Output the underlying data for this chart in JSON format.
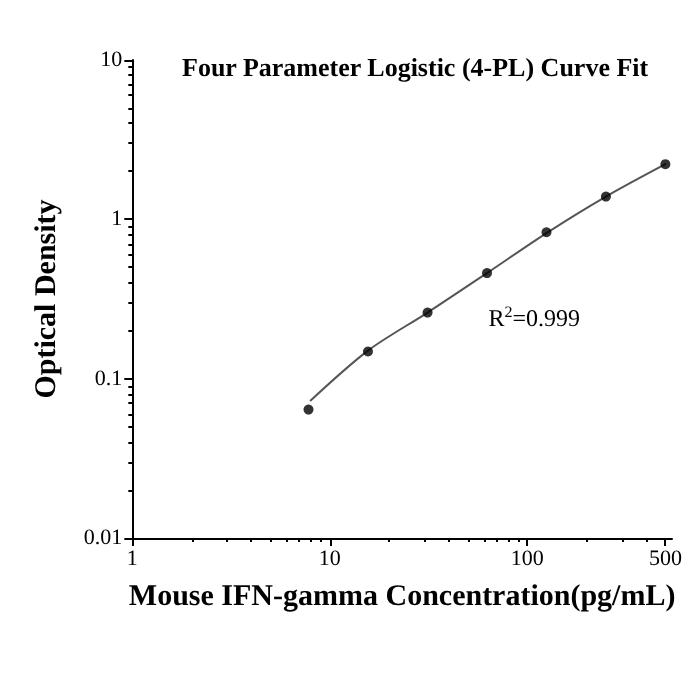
{
  "chart_data": {
    "type": "scatter",
    "title": "Four Parameter Logistic (4-PL) Curve Fit",
    "xlabel": "Mouse IFN-gamma Concentration(pg/mL)",
    "ylabel": "Optical Density",
    "annotations": [
      "R$^{2}$=0.999"
    ],
    "log": "xy",
    "xlim": [
      1,
      540
    ],
    "xticks": [
      1,
      10,
      100,
      500
    ],
    "ylim": [
      0.01,
      10
    ],
    "yticks": [
      0.01,
      0.1,
      1,
      10
    ],
    "grid": false,
    "line_style": "solid",
    "series": [
      {
        "marker": "circle",
        "color": "#000000",
        "x": [
          7.8,
          15.6,
          31.25,
          62.5,
          125,
          250,
          500
        ],
        "values": [
          0.064,
          0.148,
          0.26,
          0.46,
          0.83,
          1.39,
          2.22
        ]
      },
      {
        "type": "line",
        "marker": "none",
        "color": "#555555",
        "x": [
          8,
          15.6,
          31.25,
          62.5,
          125,
          250,
          500
        ],
        "values": [
          0.073,
          0.15,
          0.26,
          0.46,
          0.82,
          1.39,
          2.22
        ]
      }
    ]
  }
}
